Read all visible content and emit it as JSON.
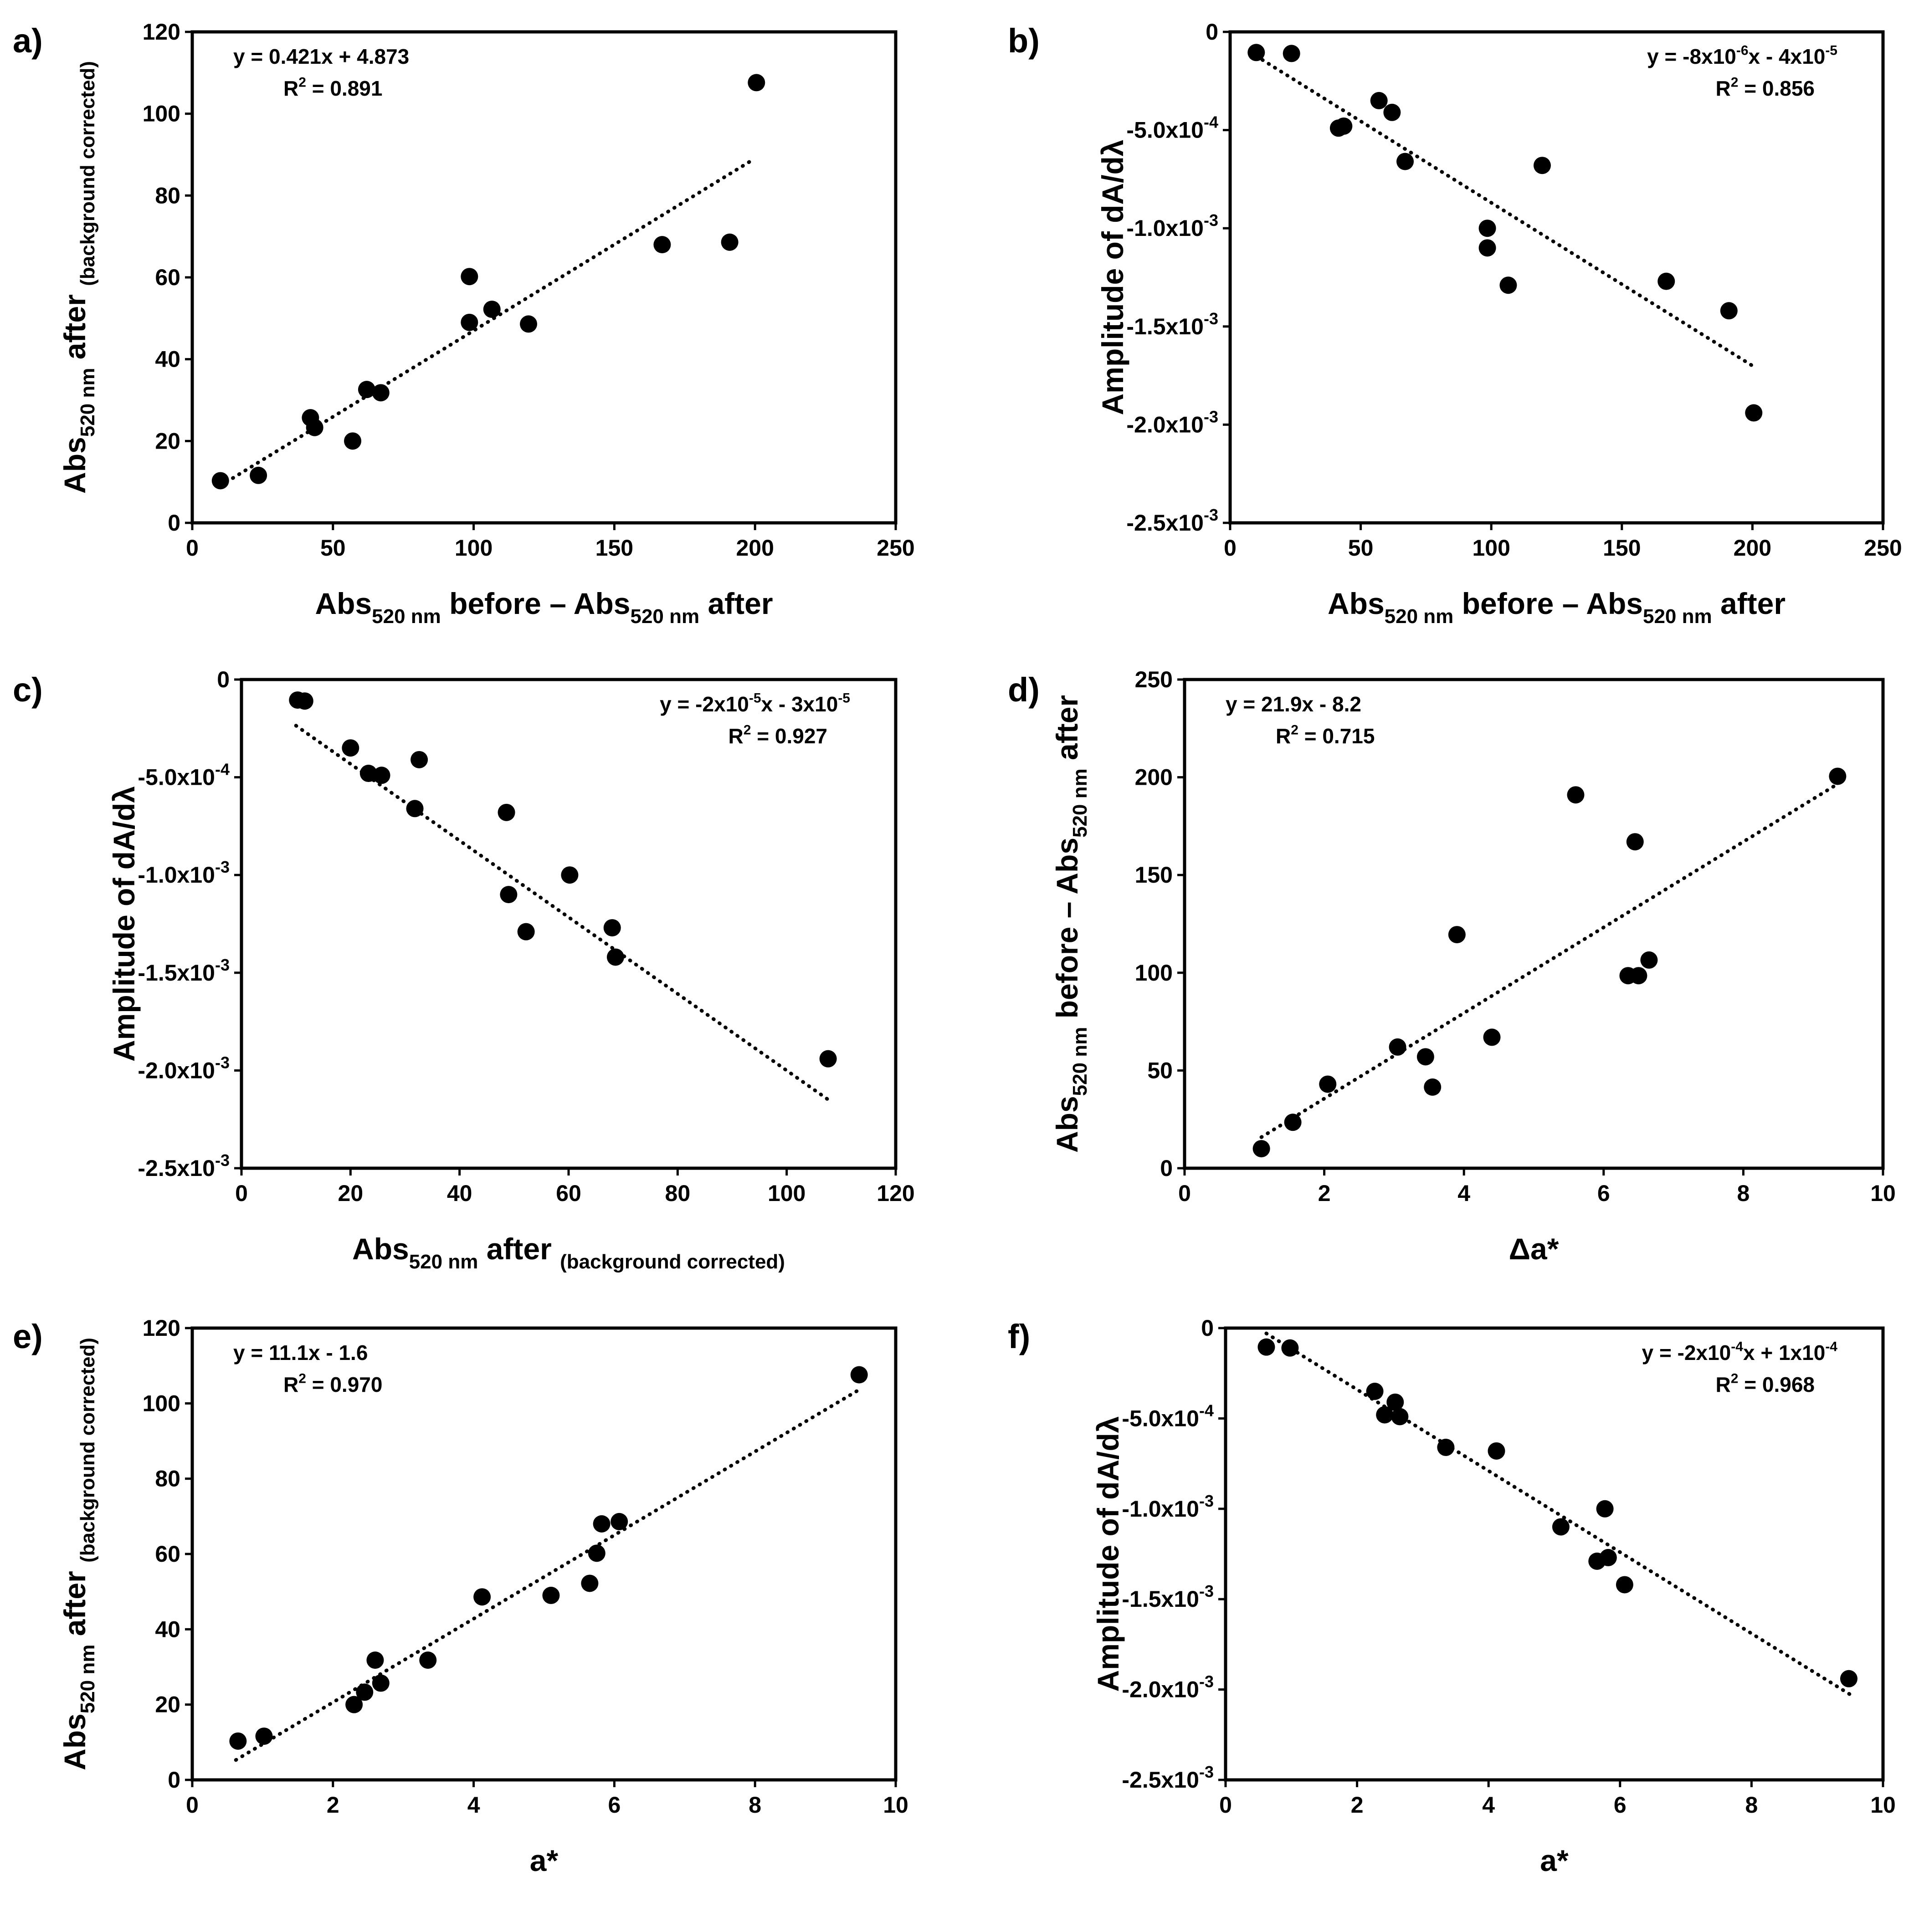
{
  "colors": {
    "points": "#000000",
    "trend": "#000000",
    "frame": "#000000",
    "background": "#ffffff"
  },
  "chart_data": [
    {
      "type": "scatter",
      "panel": "a)",
      "xlabel": [
        {
          "t": "Abs"
        },
        {
          "t": "520 nm",
          "sub": true
        },
        {
          "t": " before – Abs"
        },
        {
          "t": "520 nm",
          "sub": true
        },
        {
          "t": " after"
        }
      ],
      "ylabel": [
        {
          "t": "Abs"
        },
        {
          "t": "520 nm",
          "sub": true
        },
        {
          "t": " after "
        },
        {
          "t": "(background corrected)",
          "sub": true
        }
      ],
      "xlim": [
        0,
        250
      ],
      "xticks": [
        0,
        50,
        100,
        150,
        200,
        250
      ],
      "ylim": [
        0,
        120
      ],
      "yticks": [
        0,
        20,
        40,
        60,
        80,
        100,
        120
      ],
      "ytick_format": "plain",
      "equation": [
        {
          "t": "y = 0.421x + 4.873"
        }
      ],
      "r2": [
        {
          "t": "R"
        },
        {
          "t": "2",
          "sup": true
        },
        {
          "t": " = 0.891"
        }
      ],
      "eq_anchor": "top-left",
      "trend": {
        "slope": 0.421,
        "intercept": 4.873,
        "x_range": [
          10,
          200
        ]
      },
      "points": [
        [
          10,
          10.3
        ],
        [
          23.5,
          11.6
        ],
        [
          42,
          25.7
        ],
        [
          43.5,
          23.3
        ],
        [
          57,
          20
        ],
        [
          62,
          32.6
        ],
        [
          67,
          31.8
        ],
        [
          98.5,
          49
        ],
        [
          98.5,
          60.2
        ],
        [
          106.5,
          52.2
        ],
        [
          119.5,
          48.6
        ],
        [
          167,
          68
        ],
        [
          191,
          68.6
        ],
        [
          200.5,
          107.6
        ]
      ]
    },
    {
      "type": "scatter",
      "panel": "b)",
      "xlabel": [
        {
          "t": "Abs"
        },
        {
          "t": "520 nm",
          "sub": true
        },
        {
          "t": " before – Abs"
        },
        {
          "t": "520 nm",
          "sub": true
        },
        {
          "t": " after"
        }
      ],
      "ylabel": [
        {
          "t": "Amplitude of dA/dλ"
        }
      ],
      "xlim": [
        0,
        250
      ],
      "xticks": [
        0,
        50,
        100,
        150,
        200,
        250
      ],
      "ylim": [
        -0.0025,
        0
      ],
      "yticks": [
        0,
        -0.0005,
        -0.001,
        -0.0015,
        -0.002,
        -0.0025
      ],
      "ytick_format": "sci",
      "equation": [
        {
          "t": "y = -8x10"
        },
        {
          "t": "-6",
          "sup": true
        },
        {
          "t": "x - 4x10"
        },
        {
          "t": "-5",
          "sup": true
        }
      ],
      "r2": [
        {
          "t": "R"
        },
        {
          "t": "2",
          "sup": true
        },
        {
          "t": " = 0.856"
        }
      ],
      "eq_anchor": "top-right",
      "trend": {
        "slope": -8.3e-06,
        "intercept": -4e-05,
        "x_range": [
          10,
          200
        ]
      },
      "points": [
        [
          10,
          -0.000105
        ],
        [
          23.5,
          -0.00011
        ],
        [
          41.5,
          -0.00049
        ],
        [
          43.5,
          -0.00048
        ],
        [
          57,
          -0.00035
        ],
        [
          62,
          -0.00041
        ],
        [
          67,
          -0.00066
        ],
        [
          98.5,
          -0.001
        ],
        [
          98.5,
          -0.0011
        ],
        [
          106.5,
          -0.00129
        ],
        [
          119.5,
          -0.00068
        ],
        [
          167,
          -0.00127
        ],
        [
          191,
          -0.00142
        ],
        [
          200.5,
          -0.00194
        ]
      ]
    },
    {
      "type": "scatter",
      "panel": "c)",
      "xlabel": [
        {
          "t": "Abs"
        },
        {
          "t": "520 nm",
          "sub": true
        },
        {
          "t": " after "
        },
        {
          "t": "(background corrected)",
          "sub": true
        }
      ],
      "ylabel": [
        {
          "t": "Amplitude of dA/dλ"
        }
      ],
      "xlim": [
        0,
        120
      ],
      "xticks": [
        0,
        20,
        40,
        60,
        80,
        100,
        120
      ],
      "ylim": [
        -0.0025,
        0
      ],
      "yticks": [
        0,
        -0.0005,
        -0.001,
        -0.0015,
        -0.002,
        -0.0025
      ],
      "ytick_format": "sci",
      "equation": [
        {
          "t": "y = -2x10"
        },
        {
          "t": "-5",
          "sup": true
        },
        {
          "t": "x - 3x10"
        },
        {
          "t": "-5",
          "sup": true
        }
      ],
      "r2": [
        {
          "t": "R"
        },
        {
          "t": "2",
          "sup": true
        },
        {
          "t": " = 0.927"
        }
      ],
      "eq_anchor": "top-right",
      "trend": {
        "slope": -1.96e-05,
        "intercept": -4e-05,
        "x_range": [
          10,
          107.6
        ]
      },
      "points": [
        [
          10.3,
          -0.000105
        ],
        [
          11.6,
          -0.00011
        ],
        [
          20,
          -0.00035
        ],
        [
          23.3,
          -0.00048
        ],
        [
          25.7,
          -0.00049
        ],
        [
          31.8,
          -0.00066
        ],
        [
          32.6,
          -0.00041
        ],
        [
          48.6,
          -0.00068
        ],
        [
          49,
          -0.0011
        ],
        [
          52.2,
          -0.00129
        ],
        [
          60.2,
          -0.001
        ],
        [
          68,
          -0.00127
        ],
        [
          68.6,
          -0.00142
        ],
        [
          107.6,
          -0.00194
        ]
      ]
    },
    {
      "type": "scatter",
      "panel": "d)",
      "xlabel": [
        {
          "t": "Δa*"
        }
      ],
      "ylabel": [
        {
          "t": "Abs"
        },
        {
          "t": "520 nm",
          "sub": true
        },
        {
          "t": " before – Abs"
        },
        {
          "t": "520 nm",
          "sub": true
        },
        {
          "t": " after"
        }
      ],
      "xlim": [
        0,
        10
      ],
      "xticks": [
        0,
        2,
        4,
        6,
        8,
        10
      ],
      "ylim": [
        0,
        250
      ],
      "yticks": [
        0,
        50,
        100,
        150,
        200,
        250
      ],
      "ytick_format": "plain",
      "equation": [
        {
          "t": "y = 21.9x - 8.2"
        }
      ],
      "r2": [
        {
          "t": "R"
        },
        {
          "t": "2",
          "sup": true
        },
        {
          "t": " = 0.715"
        }
      ],
      "eq_anchor": "top-left",
      "trend": {
        "slope": 21.9,
        "intercept": -8.2,
        "x_range": [
          1.1,
          9.35
        ]
      },
      "points": [
        [
          1.1,
          10
        ],
        [
          1.55,
          23.5
        ],
        [
          2.05,
          43
        ],
        [
          3.05,
          62
        ],
        [
          3.45,
          57
        ],
        [
          3.55,
          41.5
        ],
        [
          3.9,
          119.5
        ],
        [
          4.4,
          67
        ],
        [
          5.6,
          191
        ],
        [
          6.35,
          98.5
        ],
        [
          6.45,
          167
        ],
        [
          6.5,
          98.5
        ],
        [
          6.65,
          106.5
        ],
        [
          9.35,
          200.5
        ]
      ]
    },
    {
      "type": "scatter",
      "panel": "e)",
      "xlabel": [
        {
          "t": "a*"
        }
      ],
      "ylabel": [
        {
          "t": "Abs"
        },
        {
          "t": "520 nm",
          "sub": true
        },
        {
          "t": " after "
        },
        {
          "t": "(background corrected)",
          "sub": true
        }
      ],
      "xlim": [
        0,
        10
      ],
      "xticks": [
        0,
        2,
        4,
        6,
        8,
        10
      ],
      "ylim": [
        0,
        120
      ],
      "yticks": [
        0,
        20,
        40,
        60,
        80,
        100,
        120
      ],
      "ytick_format": "plain",
      "equation": [
        {
          "t": "y = 11.1x - 1.6"
        }
      ],
      "r2": [
        {
          "t": "R"
        },
        {
          "t": "2",
          "sup": true
        },
        {
          "t": " = 0.970"
        }
      ],
      "eq_anchor": "top-left",
      "trend": {
        "slope": 11.1,
        "intercept": -1.6,
        "x_range": [
          0.62,
          9.5
        ]
      },
      "points": [
        [
          0.65,
          10.3
        ],
        [
          1.02,
          11.6
        ],
        [
          2.3,
          20
        ],
        [
          2.45,
          23.3
        ],
        [
          2.6,
          31.8
        ],
        [
          2.68,
          25.7
        ],
        [
          3.35,
          31.8
        ],
        [
          4.12,
          48.6
        ],
        [
          5.1,
          49
        ],
        [
          5.65,
          52.2
        ],
        [
          5.75,
          60.2
        ],
        [
          5.82,
          68
        ],
        [
          6.07,
          68.6
        ],
        [
          9.48,
          107.6
        ]
      ]
    },
    {
      "type": "scatter",
      "panel": "f)",
      "xlabel": [
        {
          "t": "a*"
        }
      ],
      "ylabel": [
        {
          "t": "Amplitude of dA/dλ"
        }
      ],
      "xlim": [
        0,
        10
      ],
      "xticks": [
        0,
        2,
        4,
        6,
        8,
        10
      ],
      "ylim": [
        -0.0025,
        0
      ],
      "yticks": [
        0,
        -0.0005,
        -0.001,
        -0.0015,
        -0.002,
        -0.0025
      ],
      "ytick_format": "sci",
      "equation": [
        {
          "t": "y = -2x10"
        },
        {
          "t": "-4",
          "sup": true
        },
        {
          "t": "x + 1x10"
        },
        {
          "t": "-4",
          "sup": true
        }
      ],
      "r2": [
        {
          "t": "R"
        },
        {
          "t": "2",
          "sup": true
        },
        {
          "t": " = 0.968"
        }
      ],
      "eq_anchor": "top-right",
      "trend": {
        "slope": -0.000225,
        "intercept": 0.00011,
        "x_range": [
          0.62,
          9.5
        ]
      },
      "points": [
        [
          0.62,
          -0.000105
        ],
        [
          0.98,
          -0.00011
        ],
        [
          2.27,
          -0.00035
        ],
        [
          2.42,
          -0.00048
        ],
        [
          2.58,
          -0.00041
        ],
        [
          2.65,
          -0.00049
        ],
        [
          3.35,
          -0.00066
        ],
        [
          4.12,
          -0.00068
        ],
        [
          5.1,
          -0.0011
        ],
        [
          5.65,
          -0.00129
        ],
        [
          5.77,
          -0.001
        ],
        [
          5.82,
          -0.00127
        ],
        [
          6.07,
          -0.00142
        ],
        [
          9.48,
          -0.00194
        ]
      ]
    }
  ]
}
